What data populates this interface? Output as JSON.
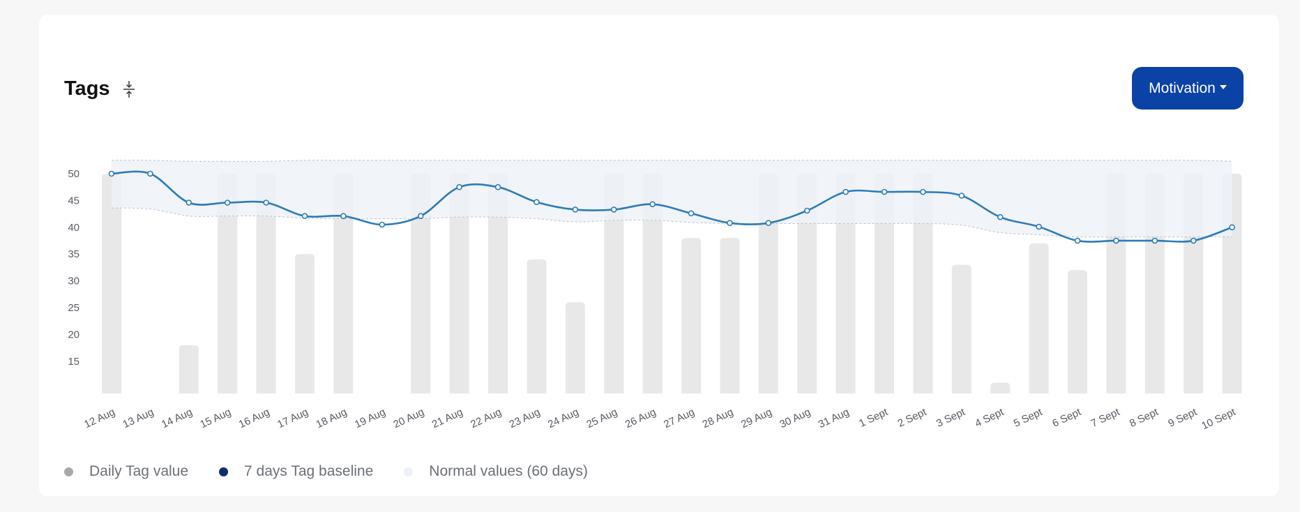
{
  "card": {
    "title": "Tags",
    "collapse_icon": "collapse-vertical-icon",
    "dropdown": {
      "label": "Motivation"
    }
  },
  "colors": {
    "bar": "#e8e8e8",
    "baseline_line": "#2b7bb9",
    "normal_band": "#edf1f8",
    "normal_band_border": "#b9c1cc",
    "dropdown_bg": "#0b42a6"
  },
  "legend": [
    {
      "label": "Daily Tag value",
      "color": "#a9a9a9"
    },
    {
      "label": "7 days Tag baseline",
      "color": "#0f2d6b"
    },
    {
      "label": "Normal values (60 days)",
      "color": "#edf1f8"
    }
  ],
  "chart_data": {
    "type": "bar",
    "title": "",
    "xlabel": "",
    "ylabel": "",
    "ylim": [
      9,
      52
    ],
    "yticks": [
      15,
      20,
      25,
      30,
      35,
      40,
      45,
      50
    ],
    "grid": false,
    "legend_position": "bottom-left",
    "categories": [
      "12 Aug",
      "13 Aug",
      "14 Aug",
      "15 Aug",
      "16 Aug",
      "17 Aug",
      "18 Aug",
      "19 Aug",
      "20 Aug",
      "21 Aug",
      "22 Aug",
      "23 Aug",
      "24 Aug",
      "25 Aug",
      "26 Aug",
      "27 Aug",
      "28 Aug",
      "29 Aug",
      "30 Aug",
      "31 Aug",
      "1 Sept",
      "2 Sept",
      "3 Sept",
      "4 Sept",
      "5 Sept",
      "6 Sept",
      "7 Sept",
      "8 Sept",
      "9 Sept",
      "10 Sept"
    ],
    "series": [
      {
        "name": "Daily Tag value",
        "type": "bar",
        "values": [
          50,
          null,
          18,
          50,
          50,
          35,
          50,
          null,
          50,
          50,
          50,
          34,
          26,
          50,
          50,
          38,
          38,
          50,
          50,
          50,
          50,
          50,
          33,
          11,
          37,
          32,
          50,
          50,
          50,
          50
        ]
      },
      {
        "name": "7 days Tag baseline",
        "type": "line",
        "values": [
          50,
          50,
          44.6,
          44.6,
          44.6,
          42.1,
          42.1,
          40.5,
          42.1,
          47.5,
          47.5,
          44.7,
          43.3,
          43.3,
          44.3,
          42.6,
          40.8,
          40.8,
          43.1,
          46.6,
          46.6,
          46.6,
          45.9,
          41.9,
          40.1,
          37.5,
          37.5,
          37.5,
          37.5,
          40.0
        ]
      },
      {
        "name": "Normal values (60 days)",
        "type": "band",
        "lower": [
          43.6,
          43.4,
          42.1,
          42.1,
          42.1,
          41.7,
          41.6,
          41.6,
          41.6,
          41.9,
          41.9,
          41.6,
          41.0,
          41.3,
          41.3,
          40.9,
          40.7,
          40.7,
          40.7,
          40.7,
          40.7,
          40.7,
          40.4,
          39.0,
          38.6,
          38.2,
          38.2,
          38.2,
          38.2,
          38.2
        ],
        "upper": [
          52.5,
          52.5,
          52.3,
          52.3,
          52.3,
          52.5,
          52.5,
          52.5,
          52.5,
          52.5,
          52.5,
          52.5,
          52.5,
          52.5,
          52.5,
          52.5,
          52.5,
          52.5,
          52.5,
          52.5,
          52.5,
          52.5,
          52.5,
          52.5,
          52.5,
          52.5,
          52.5,
          52.5,
          52.5,
          52.3
        ]
      }
    ]
  }
}
